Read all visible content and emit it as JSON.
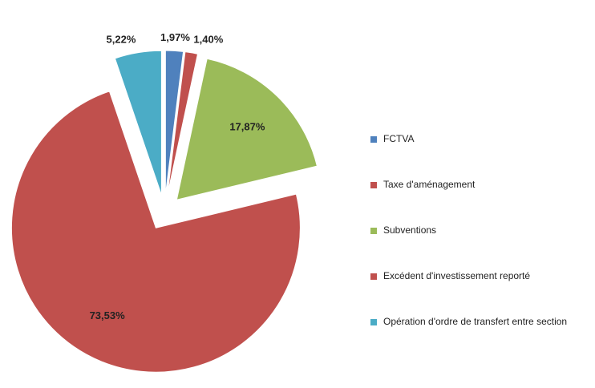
{
  "chart_data": {
    "type": "pie",
    "categories": [
      "FCTVA",
      "Taxe d'aménagement",
      "Subventions",
      "Excédent d'investissement reporté",
      "Opération d'ordre de transfert entre section"
    ],
    "values": [
      1.97,
      1.4,
      17.87,
      73.53,
      5.22
    ],
    "value_labels": [
      "1,97%",
      "1,40%",
      "17,87%",
      "73,53%",
      "5,22%"
    ],
    "colors": [
      "#4f81bd",
      "#c0504d",
      "#9bbb59",
      "#c0504d",
      "#4bacc6"
    ],
    "legend": "right"
  }
}
